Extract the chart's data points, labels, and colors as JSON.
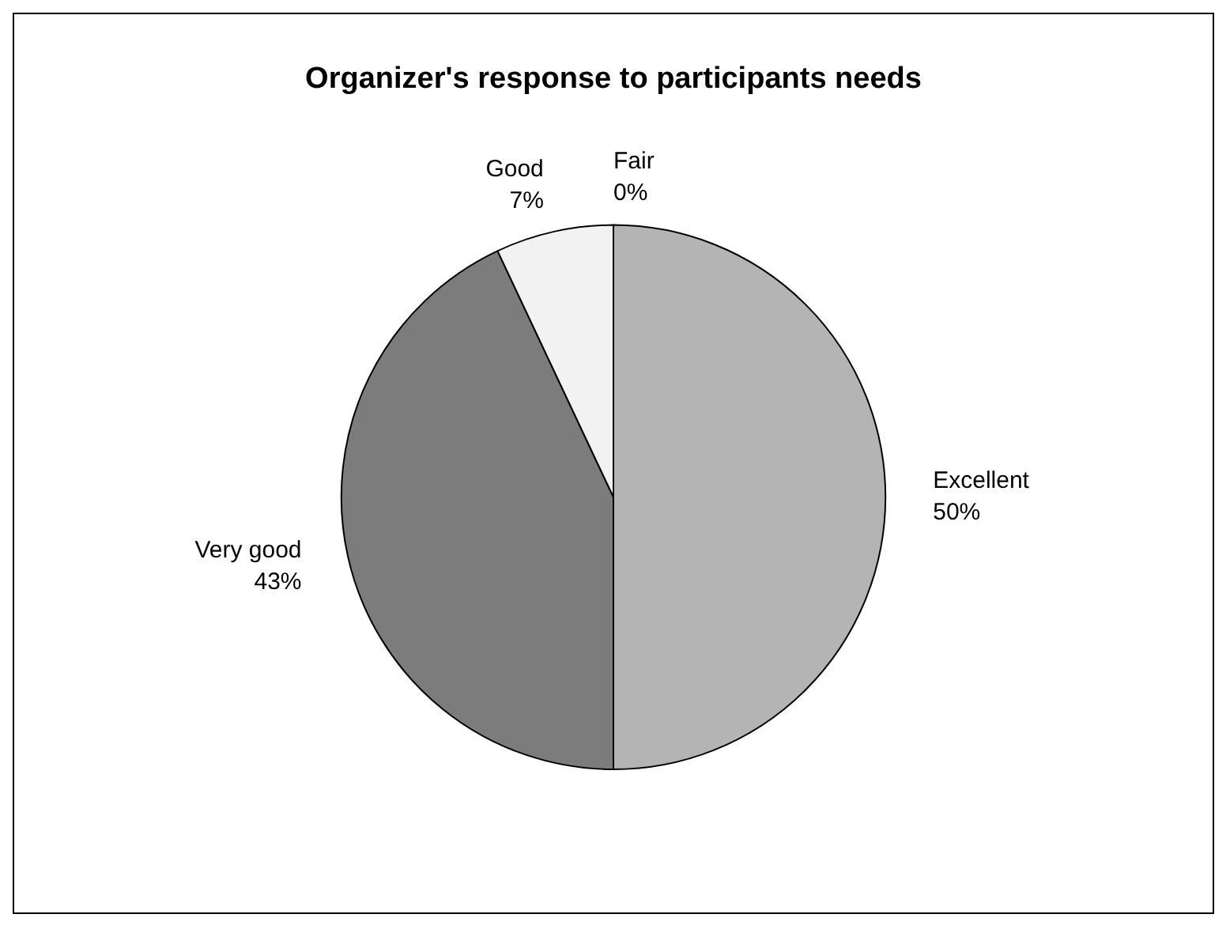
{
  "chart_data": {
    "type": "pie",
    "title": "Organizer's response to participants needs",
    "categories": [
      "Excellent",
      "Very good",
      "Good",
      "Fair"
    ],
    "values": [
      50,
      43,
      7,
      0
    ],
    "value_labels": [
      "50%",
      "43%",
      "7%",
      "0%"
    ],
    "colors": [
      "#b4b4b4",
      "#7c7c7c",
      "#f2f2f2",
      "#d8d8d8"
    ],
    "legend": false
  }
}
